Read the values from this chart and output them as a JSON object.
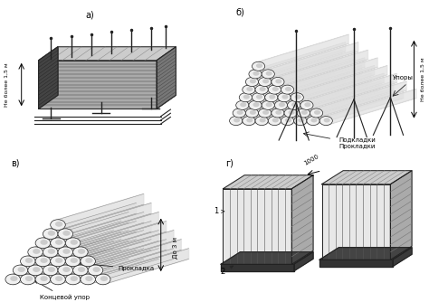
{
  "background_color": "#ffffff",
  "labels": {
    "a": "а)",
    "b": "б)",
    "c": "в)",
    "d": "г)"
  },
  "ann": {
    "a_side": "Не более 1,5 м",
    "b_side": "Не более 1,5 м",
    "b_bot1": "Подкладки",
    "b_bot2": "Прокладки",
    "b_right": "Упоры",
    "c_arrow": "До 3 м",
    "c_bot1": "Прокладка",
    "c_bot2": "Концевой упор",
    "d_h": "1000",
    "d_1": "1",
    "d_2": "2"
  },
  "fig_width": 4.74,
  "fig_height": 3.34,
  "dpi": 100
}
